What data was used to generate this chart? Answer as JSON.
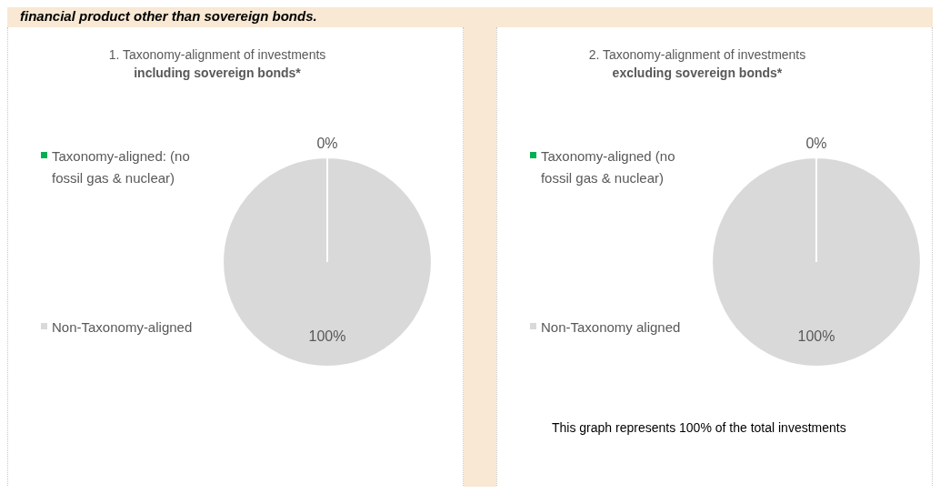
{
  "chart_data": [
    {
      "type": "pie",
      "title": "1. Taxonomy-alignment of investments",
      "subtitle": "including sovereign bonds*",
      "categories": [
        "Taxonomy-aligned: (no fossil gas & nuclear)",
        "Non-Taxonomy-aligned"
      ],
      "values": [
        0,
        100
      ],
      "colors": [
        "#00b050",
        "#d9d9d9"
      ],
      "value_labels": [
        "0%",
        "100%"
      ],
      "legend": "left",
      "annotations": [
        "financial product other than sovereign bonds."
      ]
    },
    {
      "type": "pie",
      "title": "2. Taxonomy-alignment of investments",
      "subtitle": "excluding sovereign bonds*",
      "categories": [
        "Taxonomy-aligned (no fossil gas & nuclear)",
        "Non-Taxonomy aligned"
      ],
      "values": [
        0,
        100
      ],
      "colors": [
        "#00b050",
        "#d9d9d9"
      ],
      "value_labels": [
        "0%",
        "100%"
      ],
      "legend": "left",
      "annotations": [
        "This graph represents 100% of the total investments"
      ]
    }
  ]
}
